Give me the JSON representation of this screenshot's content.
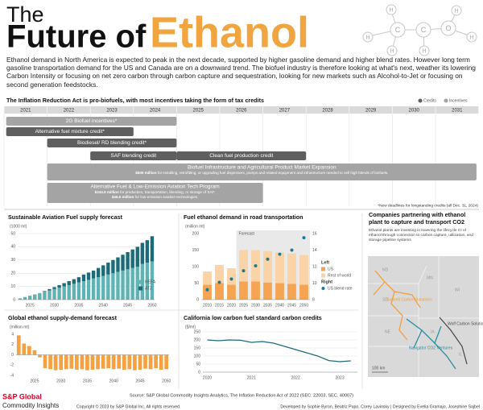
{
  "header": {
    "title_line1": "The",
    "title_line2a": "Future of",
    "title_line2b": "Ethanol",
    "intro": "Ethanol demand in North America is expected to peak in the next decade, supported by higher gasoline demand and higher blend rates. However long term  gasoline transportation demand for the US and Canada are on a downward trend. The biofuel industry is therefore looking at what's next, weather its lowering Carbon Intensity or focusing on net zero carbon through carbon capture and sequestration, looking for new markets such as Alcohol-to-Jet or focusing on second generation feedstocks."
  },
  "molecule": {
    "atoms": [
      "H",
      "H",
      "H",
      "C",
      "C",
      "O",
      "H",
      "H",
      "H"
    ]
  },
  "timeline": {
    "title": "The Inflation Reduction Act is pro-biofuels, with most incentives taking the form of tax credits",
    "legend": [
      {
        "name": "Credits",
        "color": "#5f5f5f"
      },
      {
        "name": "Incentives",
        "color": "#a4a4a4"
      }
    ],
    "years": [
      2021,
      2022,
      2023,
      2024,
      2025,
      2026,
      2027,
      2028,
      2029,
      2030,
      2031
    ],
    "bars": [
      {
        "label": "2G Biofuel incentives*",
        "start": 2021.05,
        "end": 2025,
        "kind": "incentive"
      },
      {
        "label": "Alternative fuel mixture credit*",
        "start": 2021.05,
        "end": 2024,
        "kind": "credit"
      },
      {
        "label": "Biodiesel/ RD blending credit*",
        "start": 2022,
        "end": 2025,
        "kind": "credit"
      },
      {
        "label": "SAF blending credit",
        "start": 2023,
        "end": 2025,
        "kind": "credit"
      },
      {
        "label": "Clean fuel production credit",
        "start": 2025,
        "end": 2028,
        "kind": "credit"
      },
      {
        "label": "Biofuel Infrastructure and Agricultural Product Market Expansion",
        "start": 2022,
        "end": 2031.95,
        "kind": "incentive",
        "notes": [
          {
            "bold": "$500 million",
            "text": " for installing, retrofitting, or upgrading fuel dispensers, pumps and related equipment and infrastructure needed to sell high blends of biofuels."
          }
        ]
      },
      {
        "label": "Alternative Fuel & Low-Emission Aviation Tech Program",
        "start": 2022,
        "end": 2027,
        "kind": "incentive",
        "notes": [
          {
            "bold": "$244.5 million",
            "text": " for production, transportation, blending, or storage of SAF;"
          },
          {
            "bold": "$46.5 million",
            "text": " for low-emission aviation technologies."
          }
        ]
      }
    ],
    "footnote": "*New deadlines for longstanding credits (all Dec. 31, 2024)"
  },
  "chart_data": [
    {
      "type": "bar",
      "stacked": true,
      "title": "Sustainable Aviation Fuel supply forecast",
      "y_label": "(1000 mt)",
      "x": [
        2023,
        2024,
        2025,
        2026,
        2027,
        2028,
        2029,
        2030,
        2031,
        2032,
        2033,
        2034,
        2035,
        2036,
        2037,
        2038,
        2039,
        2040,
        2041,
        2042,
        2043,
        2044,
        2045,
        2046,
        2047,
        2048,
        2049,
        2050
      ],
      "series": [
        {
          "name": "HEFA",
          "color": "#5fb3b5",
          "values": [
            1,
            2,
            3,
            4,
            5,
            6,
            7,
            8,
            9,
            10,
            11,
            12,
            13,
            14,
            15,
            16,
            17,
            18,
            19,
            20,
            21,
            22,
            23,
            24,
            25,
            27,
            28,
            29
          ]
        },
        {
          "name": "ATJ",
          "color": "#1d6b78",
          "values": [
            0,
            0,
            0,
            0,
            0,
            0.5,
            1,
            1.5,
            2,
            2.5,
            3,
            3.5,
            4,
            5,
            5.5,
            6,
            7,
            8,
            9,
            10,
            11,
            12,
            13,
            14,
            15,
            16,
            17,
            19
          ]
        }
      ],
      "xlim": [
        2022.5,
        2050.5
      ],
      "xticks": [
        2025,
        2030,
        2035,
        2040,
        2045,
        2050
      ],
      "ylim": [
        0,
        50
      ],
      "yticks": [
        0,
        10,
        20,
        30,
        40,
        50
      ],
      "grid": true,
      "legend": "lower right"
    },
    {
      "type": "bar",
      "stacked": true,
      "title": "Fuel ethanol demand in road transportation",
      "y_label": "(million mt)",
      "x": [
        2010,
        2015,
        2020,
        2025,
        2030,
        2035,
        2040,
        2045,
        2050
      ],
      "series": [
        {
          "name": "US",
          "color": "#f5a452",
          "values": [
            45,
            50,
            45,
            55,
            55,
            52,
            50,
            48,
            45
          ]
        },
        {
          "name": "Rest of world",
          "color": "#fbd3a6",
          "values": [
            40,
            55,
            50,
            95,
            95,
            95,
            93,
            92,
            90
          ]
        },
        {
          "name": "US blend rate",
          "color": "#1f7a8c",
          "type": "scatter",
          "axis": "y2",
          "values": [
            9.2,
            10.1,
            10.5,
            11.5,
            12.1,
            12.9,
            13.5,
            14.0,
            15.5
          ]
        }
      ],
      "legend_headings": [
        "Left",
        "Right"
      ],
      "forecast_from": 2022,
      "forecast_label": "Forecast",
      "xlim": [
        2007.5,
        2052.5
      ],
      "xticks": [
        2010,
        2015,
        2020,
        2025,
        2030,
        2035,
        2040,
        2045,
        2050
      ],
      "ylim": [
        0,
        200
      ],
      "yticks": [
        0,
        50,
        100,
        150,
        200
      ],
      "y2lim": [
        8,
        16
      ],
      "y2ticks": [
        8,
        10,
        12,
        14,
        16
      ],
      "grid": false,
      "legend": "right"
    },
    {
      "type": "bar",
      "title": "Global ethanol supply-demand forecast",
      "y_label": "(million mt)",
      "color": "#f5a142",
      "x": [
        2022,
        2023,
        2024,
        2025,
        2026,
        2027,
        2028,
        2029,
        2030,
        2031,
        2032,
        2033,
        2034,
        2035,
        2036,
        2037,
        2038,
        2039,
        2040,
        2041,
        2042,
        2043,
        2044,
        2045,
        2046,
        2047,
        2048,
        2049,
        2050
      ],
      "values": [
        3.8,
        2.2,
        1.7,
        0.9,
        -0.5,
        -2.6,
        -2.8,
        -3.0,
        -2.9,
        -2.8,
        -2.7,
        -2.9,
        -2.8,
        -3.0,
        -2.9,
        -2.8,
        -2.7,
        -2.6,
        -2.8,
        -2.7,
        -2.9,
        -2.8,
        -3.0,
        -2.9,
        -2.7,
        -2.8,
        -2.6,
        -2.9,
        -2.8
      ],
      "xlim": [
        2021.5,
        2050.5
      ],
      "xticks": [
        2025,
        2030,
        2035,
        2040,
        2045,
        2050
      ],
      "ylim": [
        -4,
        4
      ],
      "yticks": [
        -4,
        -2,
        0,
        2,
        4
      ],
      "grid": false
    },
    {
      "type": "line",
      "title": "California low carbon fuel standard carbon credits",
      "y_label": "($/mt)",
      "color": "#1d6b78",
      "x": [
        2020,
        2020.25,
        2020.5,
        2020.75,
        2021,
        2021.25,
        2021.5,
        2021.75,
        2022,
        2022.25,
        2022.5,
        2022.75,
        2023,
        2023.25
      ],
      "values": [
        200,
        195,
        200,
        198,
        185,
        190,
        180,
        160,
        140,
        120,
        100,
        72,
        65,
        70
      ],
      "xlim": [
        2019.9,
        2023.4
      ],
      "xticks": [
        2020,
        2021,
        2022,
        2023
      ],
      "ylim": [
        0,
        250
      ],
      "yticks": [
        0,
        50,
        100,
        150,
        200,
        250
      ],
      "grid": true
    }
  ],
  "map": {
    "title": "Companies partnering with ethanol plant to capture and transport CO2",
    "text": "Ethanol plants are investing in lowering the lifecycle CI of ethanol through connection to carbon capture, utilization, and storage pipeline systems",
    "pipelines": [
      {
        "name": "Summit Carbon Solutions",
        "color": "#f0a040"
      },
      {
        "name": "Wolf Carbon Solutions",
        "color": "#4d4d4d"
      },
      {
        "name": "Navigator CO2 Ventures",
        "color": "#2a8fa0"
      }
    ],
    "states": [
      "ND",
      "MN",
      "SD",
      "WI",
      "NE",
      "IA",
      "IL"
    ],
    "scale": "100 km"
  },
  "footer": {
    "logo1": "S&P Global",
    "logo2": "Commodity Insights",
    "source": "Source: S&P Global Commodity Insights Analytics, The Inflation Reduction Act of 2022 (SEC. 22003, SEC. 40007)",
    "copyright": "Copyright © 2023 by S&P Global Inc. All rights reserved.",
    "credits": "Developed by Sophie Byron, Beatriz Pupo, Corey Lavinsky  |  Designed by Evelia Gramajo, Josephine Sajbel"
  }
}
